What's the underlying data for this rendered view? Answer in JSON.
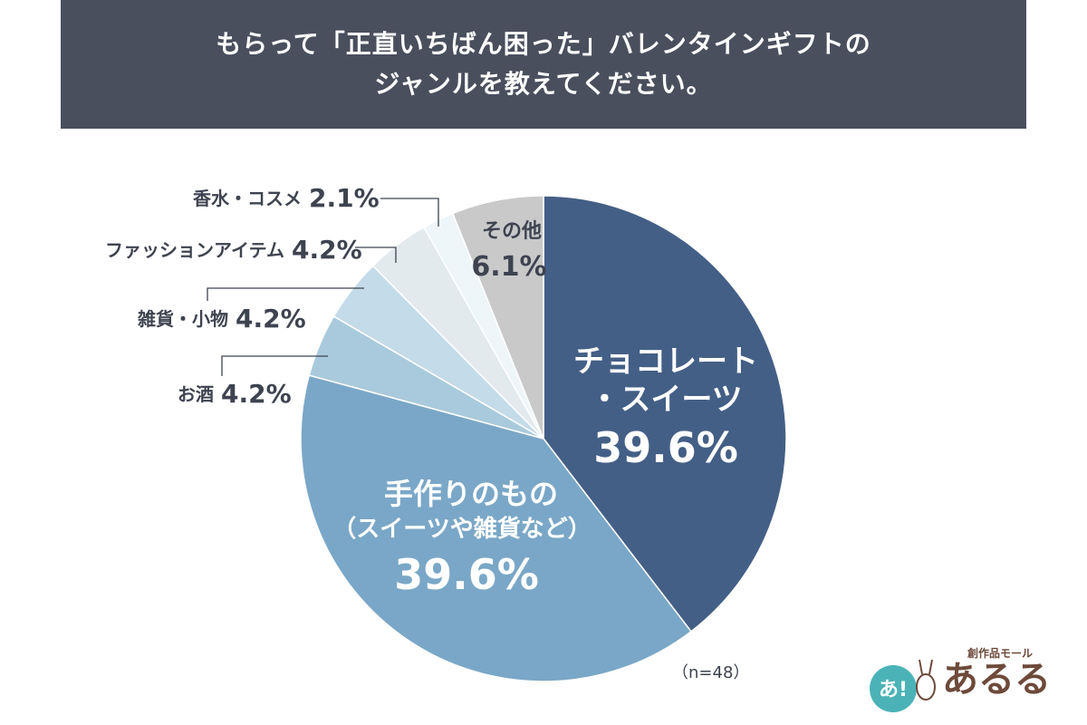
{
  "title_line1": "もらって「正直いちばん困った」バレンタインギフトの",
  "title_line2": "ジャンルを教えてください。",
  "sample_size": "（n=48）",
  "logo": {
    "text_small": "創作品モール",
    "text_main": "あるる",
    "badge_text": "あ!"
  },
  "colors": {
    "banner": "#4a4f5e",
    "chocolate": "#445f86",
    "handmade": "#7aa7c7",
    "alcohol": "#a9cadc",
    "goods": "#c4dbe9",
    "fashion": "#e2eaee",
    "perfume": "#eef6fa",
    "other": "#c9c9c9"
  },
  "chart_data": {
    "type": "pie",
    "n": 48,
    "slices": [
      {
        "key": "chocolate",
        "label_lines": [
          "チョコレート",
          "・スイーツ"
        ],
        "value": 39.6,
        "value_label": "39.6%"
      },
      {
        "key": "handmade",
        "label_lines": [
          "手作りのもの",
          "（スイーツや雑貨など）"
        ],
        "value": 39.6,
        "value_label": "39.6%"
      },
      {
        "key": "alcohol",
        "label": "お酒",
        "value": 4.2,
        "value_label": "4.2%"
      },
      {
        "key": "goods",
        "label": "雑貨・小物",
        "value": 4.2,
        "value_label": "4.2%"
      },
      {
        "key": "fashion",
        "label": "ファッションアイテム",
        "value": 4.2,
        "value_label": "4.2%"
      },
      {
        "key": "perfume",
        "label": "香水・コスメ",
        "value": 2.1,
        "value_label": "2.1%"
      },
      {
        "key": "other",
        "label_lines": [
          "その他"
        ],
        "value": 6.1,
        "value_label": "6.1%"
      }
    ]
  }
}
